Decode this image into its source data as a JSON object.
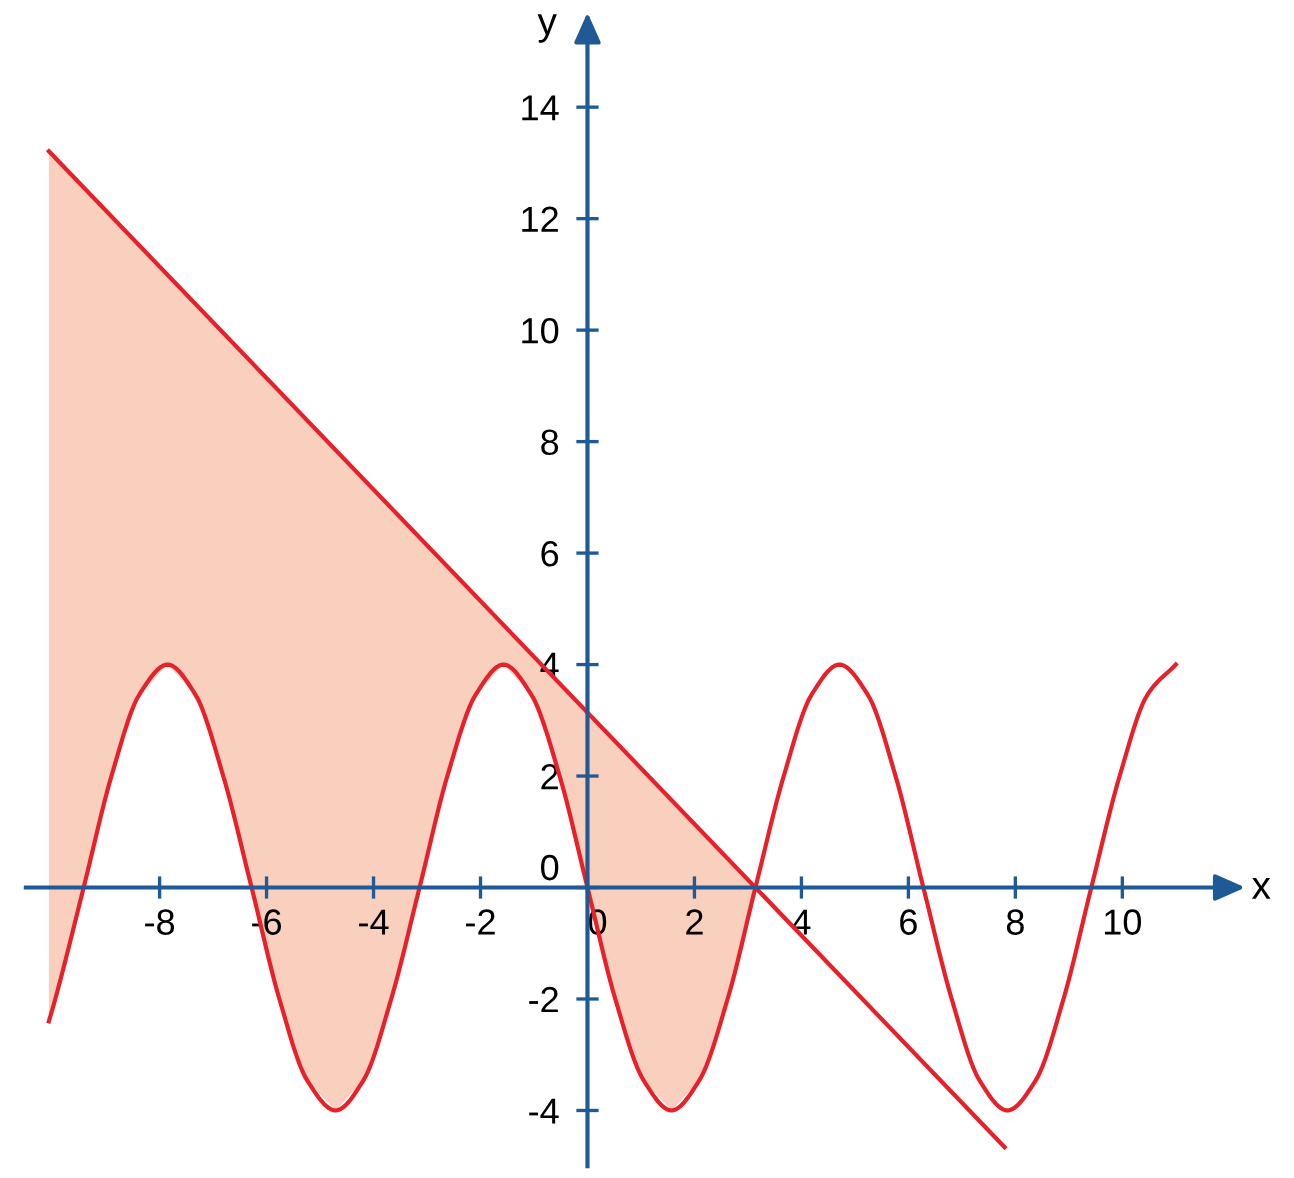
{
  "chart_data": {
    "type": "line",
    "xlabel": "x",
    "ylabel": "y",
    "xlim": [
      -10.5,
      12
    ],
    "ylim": [
      -5,
      15.5
    ],
    "xticks": [
      -8,
      -6,
      -4,
      -2,
      0,
      2,
      4,
      6,
      8,
      10
    ],
    "yticks": [
      -4,
      -2,
      0,
      2,
      4,
      6,
      8,
      10,
      12,
      14
    ],
    "grid": false,
    "legend": false,
    "marker": "none",
    "line_style": "solid",
    "series": [
      {
        "type": "area",
        "color": "#f9cfbd",
        "x": [
          -10.07,
          3.14,
          2.62,
          2.09,
          1.57,
          1.05,
          0.52,
          0,
          -0.52,
          -1.05,
          -1.57,
          -2.09,
          -2.62,
          -3.14,
          -3.67,
          -4.19,
          -4.71,
          -5.24,
          -5.76,
          -6.28,
          -6.81,
          -7.33,
          -7.85,
          -8.38,
          -8.9,
          -9.42,
          -9.95,
          -10.07
        ],
        "values": [
          13.21,
          0,
          -2,
          -3.46,
          -4,
          -3.46,
          -2,
          0,
          2,
          3.46,
          4,
          3.46,
          2,
          0,
          -2,
          -3.46,
          -4,
          -3.46,
          -2,
          0,
          2,
          3.46,
          4,
          3.46,
          2,
          0,
          -2,
          -2.4
        ]
      },
      {
        "color": "#e8202a",
        "x": [
          -10.07,
          -9.95,
          -9.42,
          -8.9,
          -8.38,
          -7.85,
          -7.33,
          -6.81,
          -6.28,
          -5.76,
          -5.24,
          -4.71,
          -4.19,
          -3.67,
          -3.14,
          -2.62,
          -2.09,
          -1.57,
          -1.05,
          -0.52,
          0,
          0.52,
          1.05,
          1.57,
          2.09,
          2.62,
          3.14,
          3.67,
          4.19,
          4.71,
          5.24,
          5.76,
          6.28,
          6.81,
          7.33,
          7.85,
          8.38,
          8.9,
          9.42,
          9.95,
          10.47,
          11.0
        ],
        "values": [
          -2.4,
          -2,
          0,
          2,
          3.46,
          4,
          3.46,
          2,
          0,
          -2,
          -3.46,
          -4,
          -3.46,
          -2,
          0,
          2,
          3.46,
          4,
          3.46,
          2,
          0,
          -2,
          -3.46,
          -4,
          -3.46,
          -2,
          0,
          2,
          3.46,
          4,
          3.46,
          2,
          0,
          -2,
          -3.46,
          -4,
          -3.46,
          -2,
          0,
          2,
          3.46,
          4
        ]
      },
      {
        "color": "#e8202a",
        "x": [
          -10.07,
          7.8
        ],
        "values": [
          13.21,
          -4.66
        ]
      }
    ]
  }
}
